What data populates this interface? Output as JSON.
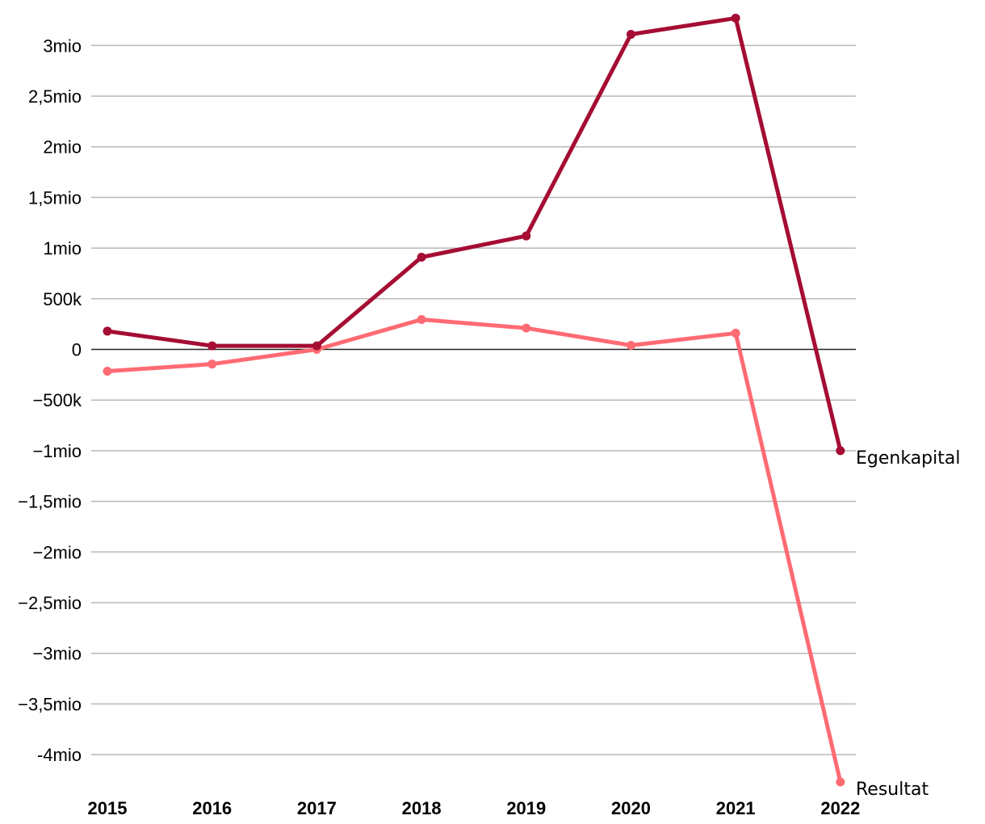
{
  "chart_data": {
    "type": "line",
    "title": "",
    "xlabel": "",
    "ylabel": "",
    "categories": [
      "2015",
      "2016",
      "2017",
      "2018",
      "2019",
      "2020",
      "2021",
      "2022"
    ],
    "ylim": [
      -4300000,
      3300000
    ],
    "yticks": [
      {
        "value": 3000000,
        "label": "3mio"
      },
      {
        "value": 2500000,
        "label": "2,5mio"
      },
      {
        "value": 2000000,
        "label": "2mio"
      },
      {
        "value": 1500000,
        "label": "1,5mio"
      },
      {
        "value": 1000000,
        "label": "1mio"
      },
      {
        "value": 500000,
        "label": "500k"
      },
      {
        "value": 0,
        "label": "0"
      },
      {
        "value": -500000,
        "label": "−500k"
      },
      {
        "value": -1000000,
        "label": "−1mio"
      },
      {
        "value": -1500000,
        "label": "−1,5mio"
      },
      {
        "value": -2000000,
        "label": "−2mio"
      },
      {
        "value": -2500000,
        "label": "−2,5mio"
      },
      {
        "value": -3000000,
        "label": "−3mio"
      },
      {
        "value": -3500000,
        "label": "−3,5mio"
      },
      {
        "value": -4000000,
        "label": "-4mio"
      }
    ],
    "grid": true,
    "series": [
      {
        "name": "Egenkapital",
        "color": "#a50d33",
        "values": [
          180000,
          35000,
          35000,
          910000,
          1120000,
          3110000,
          3270000,
          -1000000
        ]
      },
      {
        "name": "Resultat",
        "color": "#ff6b73",
        "values": [
          -215000,
          -145000,
          0,
          295000,
          210000,
          40000,
          160000,
          -4270000
        ]
      }
    ]
  }
}
